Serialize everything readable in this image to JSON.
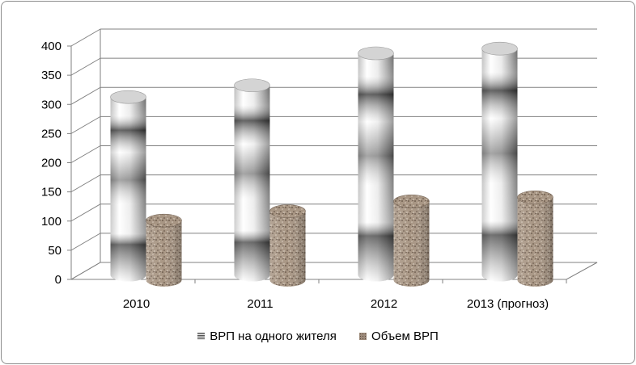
{
  "chart_data": {
    "type": "bar",
    "style": "3d-cylinder",
    "categories": [
      "2010",
      "2011",
      "2012",
      "2013 (прогноз)"
    ],
    "series": [
      {
        "name": "ВРП на одного жителя",
        "values": [
          305,
          325,
          380,
          388
        ],
        "fill": "metallic-gray"
      },
      {
        "name": "Объем ВРП",
        "values": [
          102,
          118,
          135,
          142
        ],
        "fill": "granite-texture"
      }
    ],
    "ylim": [
      0,
      400
    ],
    "yticks": [
      "0",
      "50",
      "100",
      "150",
      "200",
      "250",
      "300",
      "350",
      "400"
    ],
    "grid": true,
    "legend_position": "bottom",
    "title": "",
    "xlabel": "",
    "ylabel": ""
  },
  "colors": {
    "border": "#8c8c8c",
    "grid": "#808080",
    "granite": "#9c8a7a"
  }
}
